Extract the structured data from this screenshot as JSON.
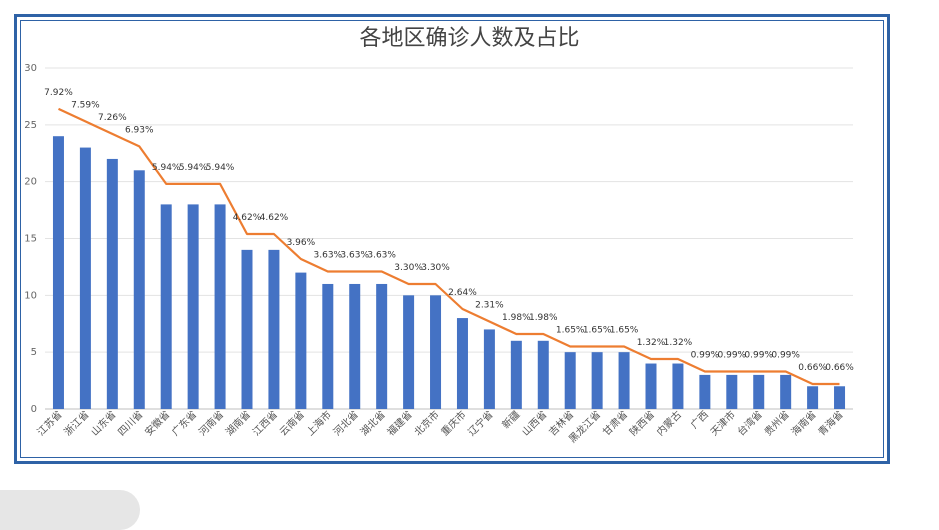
{
  "chart_data": {
    "type": "bar",
    "title": "各地区确诊人数及占比",
    "xlabel": "",
    "ylabel": "",
    "ylim": [
      0,
      30
    ],
    "yticks": [
      0,
      5,
      10,
      15,
      20,
      25,
      30
    ],
    "grid": true,
    "bar_color": "#4472c4",
    "line_color": "#ed7d31",
    "categories": [
      "江苏省",
      "浙江省",
      "山东省",
      "四川省",
      "安徽省",
      "广东省",
      "河南省",
      "湖南省",
      "江西省",
      "云南省",
      "上海市",
      "河北省",
      "湖北省",
      "福建省",
      "北京市",
      "重庆市",
      "辽宁省",
      "新疆",
      "山西省",
      "吉林省",
      "黑龙江省",
      "甘肃省",
      "陕西省",
      "内蒙古",
      "广西",
      "天津市",
      "台湾省",
      "贵州省",
      "海南省",
      "青海省"
    ],
    "values": [
      24,
      23,
      22,
      21,
      18,
      18,
      18,
      14,
      14,
      12,
      11,
      11,
      11,
      10,
      10,
      8,
      7,
      6,
      6,
      5,
      5,
      5,
      4,
      4,
      3,
      3,
      3,
      3,
      2,
      2
    ],
    "percent_labels": [
      "7.92%",
      "7.59%",
      "7.26%",
      "6.93%",
      "5.94%",
      "5.94%",
      "5.94%",
      "4.62%",
      "4.62%",
      "3.96%",
      "3.63%",
      "3.63%",
      "3.63%",
      "3.30%",
      "3.30%",
      "2.64%",
      "2.31%",
      "1.98%",
      "1.98%",
      "1.65%",
      "1.65%",
      "1.65%",
      "1.32%",
      "1.32%",
      "0.99%",
      "0.99%",
      "0.99%",
      "0.99%",
      "0.66%",
      "0.66%"
    ],
    "percent_values": [
      7.92,
      7.59,
      7.26,
      6.93,
      5.94,
      5.94,
      5.94,
      4.62,
      4.62,
      3.96,
      3.63,
      3.63,
      3.63,
      3.3,
      3.3,
      2.64,
      2.31,
      1.98,
      1.98,
      1.65,
      1.65,
      1.65,
      1.32,
      1.32,
      0.99,
      0.99,
      0.99,
      0.99,
      0.66,
      0.66
    ]
  }
}
